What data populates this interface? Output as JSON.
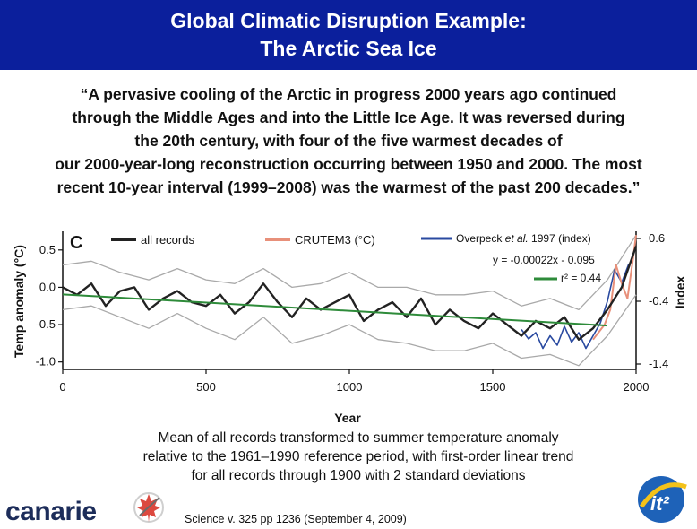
{
  "slide": {
    "title_line1": "Global Climatic Disruption Example:",
    "title_line2": "The Arctic Sea Ice",
    "quote_lines": [
      "“A pervasive cooling of the Arctic in progress 2000 years ago continued",
      "through the Middle Ages and into the Little Ice Age.  It was reversed during",
      "the 20th century, with four of the five warmest decades of",
      "our 2000-year-long reconstruction occurring between 1950 and 2000. The most",
      "recent 10-year interval (1999–2008) was the warmest of the past 200 decades.”"
    ],
    "caption_lines": [
      "Mean of all records transformed to summer temperature anomaly",
      "relative to the 1961–1990 reference period, with first-order linear trend",
      "for all records through 1900 with 2 standard deviations"
    ],
    "source": "Science v. 325 pp 1236 (September 4, 2009)",
    "logo_left": "canarie",
    "logo_right": "it²"
  },
  "chart_data": {
    "type": "line",
    "panel_label": "C",
    "xlabel": "Year",
    "ylabel": "Temp anomaly (°C)",
    "y2label": "Index",
    "xlim": [
      0,
      2000
    ],
    "ylim": [
      -1.1,
      0.75
    ],
    "y2lim": [
      -1.4,
      0.6
    ],
    "x_ticks": [
      0,
      500,
      1000,
      1500,
      2000
    ],
    "y_ticks": [
      0.5,
      0.0,
      -0.5,
      -1.0
    ],
    "y_tick_labels": [
      "0.5",
      "0.0",
      "-0.5",
      "-1.0"
    ],
    "y2_ticks": [
      0.6,
      -0.4,
      -1.4
    ],
    "y2_tick_labels": [
      "0.6",
      "-0.4",
      "-1.4"
    ],
    "legend": {
      "all_records": "all records",
      "crutem3": "CRUTEM3 (°C)",
      "overpeck_prefix": "Overpeck ",
      "overpeck_etal": "et al.",
      "overpeck_suffix": " 1997 (index)",
      "trend_equation": "y = -0.00022x - 0.095",
      "trend_r2": "r² = 0.44"
    },
    "colors": {
      "all_records": "#222222",
      "band": "#a9a9a9",
      "crutem3": "#e8907a",
      "overpeck": "#2a4aa0",
      "trend": "#2e8b3a"
    },
    "trend": {
      "slope": -0.00022,
      "intercept": -0.095,
      "x_range": [
        0,
        1900
      ]
    },
    "series": [
      {
        "name": "all records",
        "x": [
          0,
          50,
          100,
          150,
          200,
          250,
          300,
          350,
          400,
          450,
          500,
          550,
          600,
          650,
          700,
          750,
          800,
          850,
          900,
          950,
          1000,
          1050,
          1100,
          1150,
          1200,
          1250,
          1300,
          1350,
          1400,
          1450,
          1500,
          1550,
          1600,
          1650,
          1700,
          1750,
          1800,
          1850,
          1900,
          1950,
          2000
        ],
        "values": [
          0.0,
          -0.1,
          0.05,
          -0.25,
          -0.05,
          0.0,
          -0.3,
          -0.15,
          -0.05,
          -0.2,
          -0.25,
          -0.1,
          -0.35,
          -0.2,
          0.05,
          -0.2,
          -0.4,
          -0.15,
          -0.3,
          -0.2,
          -0.1,
          -0.45,
          -0.3,
          -0.2,
          -0.4,
          -0.15,
          -0.5,
          -0.3,
          -0.45,
          -0.55,
          -0.35,
          -0.5,
          -0.65,
          -0.45,
          -0.55,
          -0.4,
          -0.7,
          -0.55,
          -0.3,
          0.0,
          0.55
        ]
      },
      {
        "name": "upper 2 std dev",
        "x": [
          0,
          100,
          200,
          300,
          400,
          500,
          600,
          700,
          800,
          900,
          1000,
          1100,
          1200,
          1300,
          1400,
          1500,
          1600,
          1700,
          1800,
          1900,
          2000
        ],
        "values": [
          0.3,
          0.35,
          0.2,
          0.1,
          0.25,
          0.1,
          0.05,
          0.25,
          0.0,
          0.05,
          0.2,
          0.0,
          0.0,
          -0.1,
          -0.1,
          -0.05,
          -0.25,
          -0.15,
          -0.3,
          0.1,
          0.7
        ]
      },
      {
        "name": "lower 2 std dev",
        "x": [
          0,
          100,
          200,
          300,
          400,
          500,
          600,
          700,
          800,
          900,
          1000,
          1100,
          1200,
          1300,
          1400,
          1500,
          1600,
          1700,
          1800,
          1900,
          2000
        ],
        "values": [
          -0.3,
          -0.25,
          -0.4,
          -0.55,
          -0.35,
          -0.55,
          -0.7,
          -0.4,
          -0.75,
          -0.65,
          -0.5,
          -0.7,
          -0.75,
          -0.85,
          -0.85,
          -0.75,
          -0.95,
          -0.9,
          -1.05,
          -0.65,
          -0.1
        ]
      },
      {
        "name": "CRUTEM3 (°C)",
        "x": [
          1850,
          1870,
          1890,
          1910,
          1930,
          1950,
          1970,
          1990,
          2000
        ],
        "values": [
          -0.7,
          -0.6,
          -0.5,
          -0.3,
          0.3,
          0.05,
          -0.15,
          0.4,
          0.7
        ]
      },
      {
        "name": "Overpeck et al. 1997 (index)",
        "axis": "y2",
        "x": [
          1600,
          1625,
          1650,
          1675,
          1700,
          1725,
          1750,
          1775,
          1800,
          1825,
          1850,
          1875,
          1900,
          1925,
          1950,
          1975
        ],
        "values": [
          -0.85,
          -1.0,
          -0.9,
          -1.15,
          -0.95,
          -1.1,
          -0.8,
          -1.05,
          -0.9,
          -1.15,
          -0.95,
          -0.75,
          -0.4,
          0.1,
          -0.1,
          0.2
        ]
      }
    ]
  }
}
